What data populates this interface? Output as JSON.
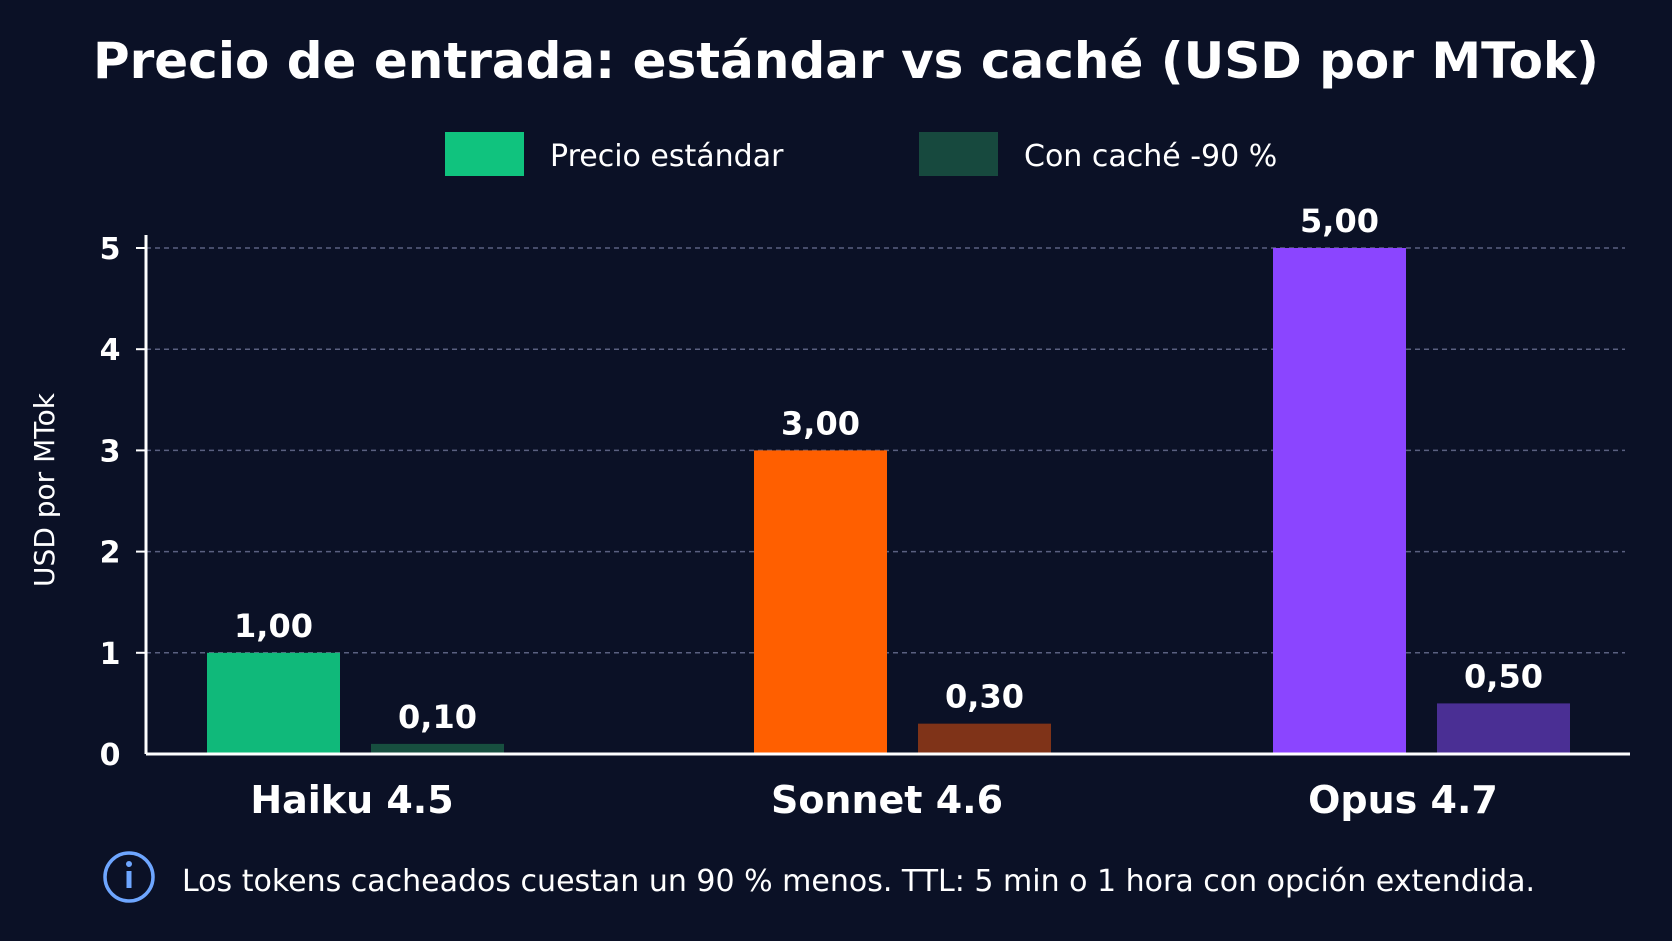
{
  "chart_data": {
    "type": "bar",
    "title": "Precio de entrada: estándar vs caché (USD por MTok)",
    "ylabel": "USD por MTok",
    "ylim": [
      0,
      5
    ],
    "yticks": [
      "0",
      "1",
      "2",
      "3",
      "4",
      "5"
    ],
    "grid": true,
    "legend_position": "top",
    "categories": [
      "Haiku 4.5",
      "Sonnet 4.6",
      "Opus 4.7"
    ],
    "series": [
      {
        "name": "Precio estándar",
        "values": [
          1.0,
          3.0,
          5.0
        ],
        "labels": [
          "1,00",
          "3,00",
          "5,00"
        ],
        "colors": [
          "#10b97a",
          "#ff5f00",
          "#8b45ff"
        ]
      },
      {
        "name": "Con caché -90 %",
        "values": [
          0.1,
          0.3,
          0.5
        ],
        "labels": [
          "0,10",
          "0,30",
          "0,50"
        ],
        "colors": [
          "#174f3f",
          "#7f3318",
          "#4a2f94"
        ]
      }
    ],
    "legend_colors": [
      "#10c37e",
      "#17493e"
    ]
  },
  "note": {
    "icon": "info-icon",
    "text": "Los tokens cacheados cuestan un 90 % menos. TTL: 5 min o 1 hora con opción extendida.",
    "icon_color": "#6ea6ff"
  }
}
